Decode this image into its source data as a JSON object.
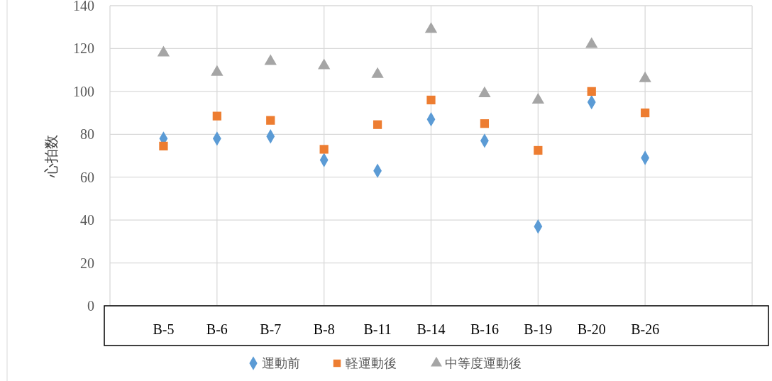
{
  "chart_data": {
    "type": "scatter",
    "ylabel": "心拍数",
    "categories": [
      "B-5",
      "B-6",
      "B-7",
      "B-8",
      "B-11",
      "B-14",
      "B-16",
      "B-19",
      "B-20",
      "B-26"
    ],
    "series": [
      {
        "name": "運動前",
        "color": "#5b9bd5",
        "marker": "diamond",
        "values": [
          78,
          78,
          79,
          68,
          63,
          87,
          77,
          37,
          95,
          69
        ]
      },
      {
        "name": "軽運動後",
        "color": "#ed7d31",
        "marker": "square",
        "values": [
          74.5,
          88.5,
          86.5,
          73,
          84.5,
          96,
          85,
          72.5,
          100,
          90
        ]
      },
      {
        "name": "中等度運動後",
        "color": "#a5a5a5",
        "marker": "triangle",
        "values": [
          118,
          109,
          114,
          112,
          108,
          129,
          99,
          96,
          122,
          106
        ]
      }
    ],
    "ylim": [
      0,
      140
    ],
    "yticks": [
      0,
      20,
      40,
      60,
      80,
      100,
      120,
      140
    ],
    "grid": true,
    "legend": "bottom"
  }
}
